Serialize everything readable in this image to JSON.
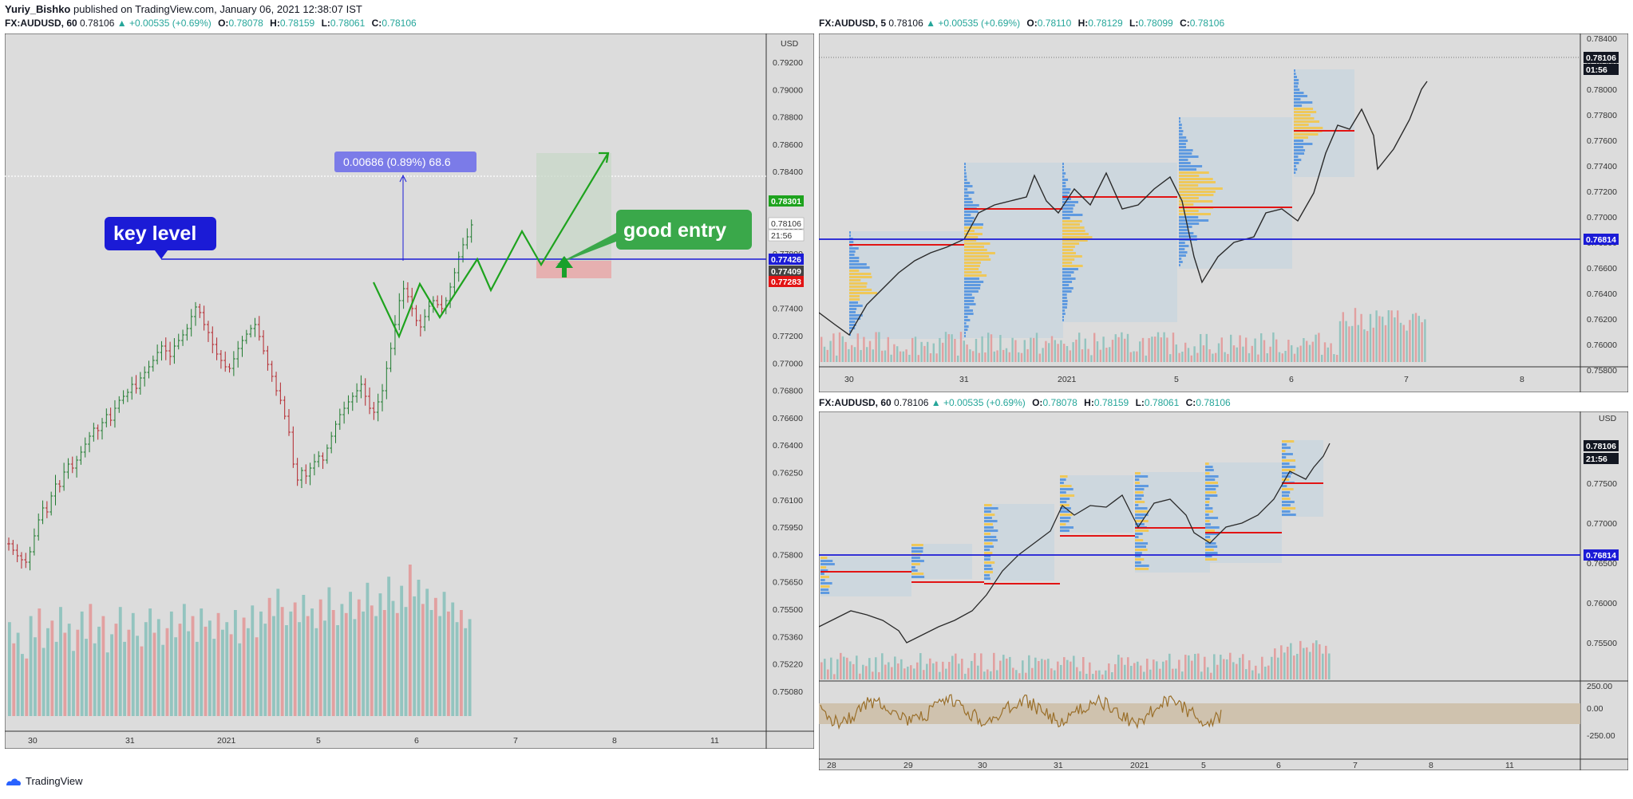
{
  "header": {
    "author": "Yuriy_Bishko",
    "published_text": "published on TradingView.com, January 06, 2021 12:38:07 IST"
  },
  "colors": {
    "bg": "#dcdcdc",
    "up_candle": "#1e7a2e",
    "down_candle": "#b3262d",
    "vol_up": "#93c4bf",
    "vol_down": "#e2a0a0",
    "level_blue": "#1b1bd6",
    "poc_red": "#e21414",
    "pattern_green": "#1ea31e",
    "box_fill": "#c9d6de",
    "vp_blue": "#4b8fe0",
    "vp_yellow": "#f5c542"
  },
  "legends": [
    {
      "symbol": "FX:AUDUSD, 60",
      "price": "0.78106",
      "change": "+0.00535 (+0.69%)",
      "open": "0.78078",
      "high": "0.78159",
      "low": "0.78061",
      "close": "0.78106"
    },
    {
      "symbol": "FX:AUDUSD, 5",
      "price": "0.78106",
      "change": "+0.00535 (+0.69%)",
      "open": "0.78110",
      "high": "0.78129",
      "low": "0.78099",
      "close": "0.78106"
    },
    {
      "symbol": "FX:AUDUSD, 60",
      "price": "0.78106",
      "change": "+0.00535 (+0.69%)",
      "open": "0.78078",
      "high": "0.78159",
      "low": "0.78061",
      "close": "0.78106"
    }
  ],
  "labels": {
    "o": "O:",
    "h": "H:",
    "l": "L:",
    "c": "C:",
    "currency": "USD",
    "key_level": "key level",
    "good_entry": "good entry",
    "measure": "0.00686 (0.89%) 68.6",
    "brand": "TradingView"
  },
  "chart_data": [
    {
      "type": "candlestick",
      "title": "FX:AUDUSD, 60",
      "x_ticks": [
        "30",
        "31",
        "2021",
        "5",
        "6",
        "7",
        "8",
        "11"
      ],
      "y_ticks": [
        "0.79200",
        "0.79000",
        "0.78800",
        "0.78600",
        "0.78400",
        "0.78200",
        "0.78000",
        "0.77800",
        "0.77600",
        "0.77400",
        "0.77200",
        "0.77000",
        "0.76800",
        "0.76600",
        "0.76400",
        "0.76250",
        "0.76100",
        "0.75950",
        "0.75800",
        "0.75650",
        "0.75500",
        "0.75360",
        "0.75220",
        "0.75080"
      ],
      "ylim": [
        0.7508,
        0.7928
      ],
      "key_level": 0.77426,
      "price_tags": [
        {
          "value": 0.78301,
          "text": "0.78301",
          "color": "#1ea31e"
        },
        {
          "value": 0.78106,
          "text": "0.78106",
          "color": "#ffffff"
        },
        {
          "value": 0.7799,
          "text": "21:56",
          "color": "#ffffff"
        },
        {
          "value": 0.77426,
          "text": "0.77426",
          "color": "#1b1bd6"
        },
        {
          "value": 0.77409,
          "text": "0.77409",
          "color": "#444444"
        },
        {
          "value": 0.77283,
          "text": "0.77283",
          "color": "#e21414"
        }
      ],
      "closes": [
        0.7718,
        0.7712,
        0.7708,
        0.7704,
        0.7702,
        0.7715,
        0.7726,
        0.7738,
        0.7745,
        0.7741,
        0.7752,
        0.776,
        0.7758,
        0.7768,
        0.7772,
        0.7766,
        0.7771,
        0.7775,
        0.778,
        0.7784,
        0.7788,
        0.7786,
        0.779,
        0.7794,
        0.7789,
        0.7792,
        0.7796,
        0.7802,
        0.7806,
        0.7812,
        0.7808,
        0.7814,
        0.7818,
        0.7822,
        0.7826,
        0.783,
        0.7832,
        0.7828,
        0.7824,
        0.7832,
        0.7838,
        0.7842,
        0.7846,
        0.7855,
        0.7862,
        0.7858,
        0.785,
        0.7845,
        0.7838,
        0.7832,
        0.7826,
        0.782,
        0.7818,
        0.7825,
        0.7832,
        0.784,
        0.7846,
        0.7852,
        0.7855,
        0.785,
        0.7842,
        0.7835,
        0.7828,
        0.7822,
        0.7815,
        0.7805,
        0.779,
        0.7768,
        0.7752,
        0.776,
        0.7756,
        0.7762,
        0.7768,
        0.7772,
        0.777,
        0.7778,
        0.7786,
        0.7795,
        0.7805,
        0.7812,
        0.7818,
        0.7826,
        0.7834,
        0.784,
        0.7838,
        0.783,
        0.7828,
        0.7834,
        0.7842,
        0.785,
        0.7858,
        0.7866,
        0.7878,
        0.7885,
        0.788,
        0.7872,
        0.7866,
        0.7862,
        0.787,
        0.7878,
        0.7882,
        0.7878,
        0.7874,
        0.788,
        0.7886,
        0.7895,
        0.7902,
        0.791,
        0.7918,
        0.7926
      ],
      "volumes": [
        0.62,
        0.48,
        0.55,
        0.41,
        0.38,
        0.66,
        0.52,
        0.71,
        0.45,
        0.58,
        0.63,
        0.49,
        0.72,
        0.55,
        0.61,
        0.43,
        0.57,
        0.69,
        0.51,
        0.74,
        0.48,
        0.59,
        0.66,
        0.42,
        0.54,
        0.61,
        0.72,
        0.49,
        0.57,
        0.68,
        0.53,
        0.46,
        0.62,
        0.71,
        0.55,
        0.64,
        0.47,
        0.58,
        0.69,
        0.52,
        0.61,
        0.74,
        0.56,
        0.66,
        0.49,
        0.71,
        0.59,
        0.63,
        0.51,
        0.68,
        0.57,
        0.62,
        0.54,
        0.7,
        0.48,
        0.65,
        0.58,
        0.73,
        0.52,
        0.69,
        0.61,
        0.78,
        0.66,
        0.84,
        0.72,
        0.6,
        0.69,
        0.75,
        0.62,
        0.8,
        0.66,
        0.71,
        0.58,
        0.77,
        0.63,
        0.85,
        0.7,
        0.6,
        0.74,
        0.68,
        0.82,
        0.64,
        0.77,
        0.69,
        0.88,
        0.73,
        0.66,
        0.81,
        0.7,
        0.92,
        0.76,
        0.68,
        0.86,
        0.72,
        1.0,
        0.79,
        0.9,
        0.74,
        0.84,
        0.7,
        0.78,
        0.66,
        0.82,
        0.69,
        0.75,
        0.62,
        0.7,
        0.58,
        0.64
      ],
      "zigzag_path": [
        [
          0.7755,
          0.7752
        ],
        [
          0.7785,
          0.772
        ],
        [
          0.7805,
          0.778
        ],
        [
          0.7822,
          0.774
        ],
        [
          0.784,
          0.7792
        ],
        [
          0.7858,
          0.7745
        ],
        [
          0.7876,
          0.781
        ],
        [
          0.7892,
          0.7745
        ],
        [
          0.793,
          0.7835
        ]
      ],
      "zone_top": 0.783,
      "zone_bottom": 0.7728,
      "red_zone_bottom": 0.7728,
      "measure_from": 0.7742,
      "measure_to": 0.7812
    },
    {
      "type": "candlestick",
      "title": "FX:AUDUSD, 5",
      "x_ticks": [
        "30",
        "31",
        "2021",
        "5",
        "6",
        "7",
        "8"
      ],
      "y_ticks": [
        "0.78400",
        "0.78200",
        "0.78000",
        "0.77800",
        "0.77600",
        "0.77400",
        "0.77200",
        "0.77000",
        "0.76800",
        "0.76600",
        "0.76400",
        "0.76200",
        "0.76000",
        "0.75800"
      ],
      "ylim": [
        0.758,
        0.7852
      ],
      "key_level": 0.76814,
      "price_tags": [
        {
          "value": 0.78106,
          "text": "0.78106",
          "color": "#131722"
        },
        {
          "value": 0.7799,
          "text": "01:56",
          "color": "#131722"
        },
        {
          "value": 0.76814,
          "text": "0.76814",
          "color": "#1b1bd6"
        }
      ],
      "poc_levels": [
        0.768,
        0.7706,
        0.7716,
        0.7708,
        0.7768
      ]
    },
    {
      "type": "candlestick",
      "title": "FX:AUDUSD, 60",
      "x_ticks": [
        "28",
        "29",
        "30",
        "31",
        "2021",
        "5",
        "6",
        "7",
        "8",
        "11"
      ],
      "y_ticks": [
        "0.78000",
        "0.77500",
        "0.77000",
        "0.76500",
        "0.76000",
        "0.75500"
      ],
      "ylim": [
        0.7528,
        0.7838
      ],
      "key_level": 0.76814,
      "price_tags": [
        {
          "value": 0.78106,
          "text": "0.78106",
          "color": "#131722"
        },
        {
          "value": 0.7798,
          "text": "21:56",
          "color": "#131722"
        },
        {
          "value": 0.76814,
          "text": "0.76814",
          "color": "#1b1bd6"
        }
      ],
      "oscillator_ticks": [
        "250.00",
        "0.00",
        "-250.00"
      ],
      "poc_levels": [
        0.7612,
        0.7598,
        0.7682,
        0.7706,
        0.7716,
        0.7708,
        0.7768
      ]
    }
  ]
}
